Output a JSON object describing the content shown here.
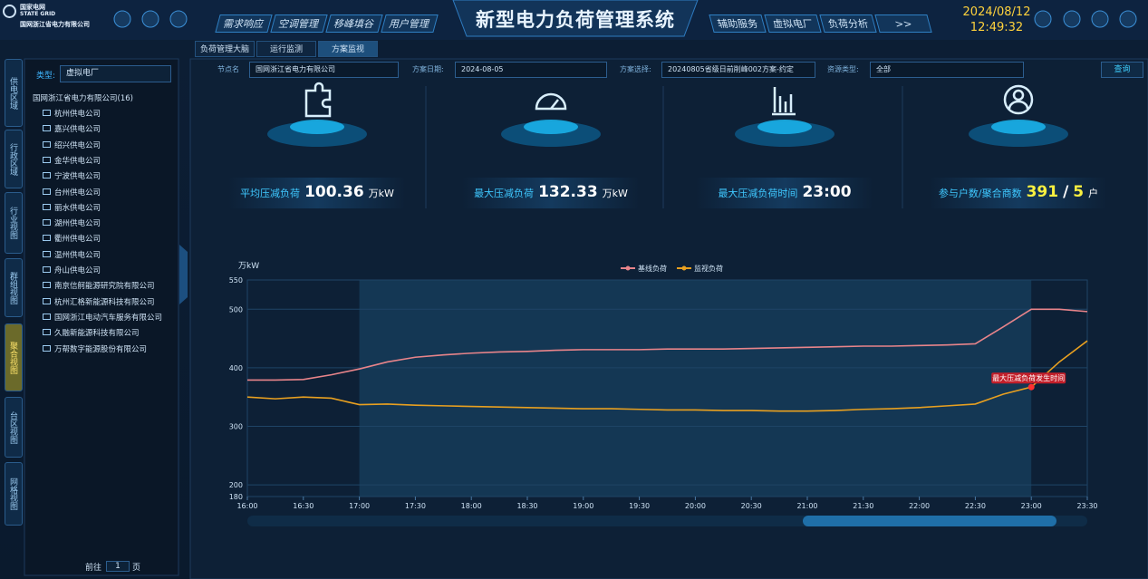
{
  "header": {
    "logo": [
      "国家电网",
      "STATE GRID",
      "国网浙江省电力有限公司"
    ],
    "title": "新型电力负荷管理系统",
    "nav_left": [
      "需求响应",
      "空调管理",
      "移峰填谷",
      "用户管理"
    ],
    "nav_right": [
      "辅助服务",
      "虚拟电厂",
      "负荷分析",
      ">>"
    ],
    "date": "2024/08/12",
    "time": "12:49:32"
  },
  "side_tabs": {
    "items": [
      "供电区域",
      "行政区域",
      "行业视图",
      "群组视图",
      "聚合视图",
      "台区视图",
      "网格视图"
    ],
    "active": 4
  },
  "tabs": {
    "items": [
      "负荷管理大脑",
      "运行监测",
      "方案监视"
    ],
    "active": 2
  },
  "tree": {
    "type_label": "类型:",
    "type_value": "虚拟电厂",
    "root": "国网浙江省电力有限公司(16)",
    "items": [
      "杭州供电公司",
      "嘉兴供电公司",
      "绍兴供电公司",
      "金华供电公司",
      "宁波供电公司",
      "台州供电公司",
      "丽水供电公司",
      "湖州供电公司",
      "衢州供电公司",
      "温州供电公司",
      "舟山供电公司",
      "南京信舸能源研究院有限公司",
      "杭州汇格新能源科技有限公司",
      "国网浙江电动汽车服务有限公司",
      "久融新能源科技有限公司",
      "万帮数字能源股份有限公司"
    ],
    "pager": {
      "goto": "前往",
      "page": "1",
      "unit": "页"
    }
  },
  "filters": {
    "node_label": "节点名",
    "node_value": "国网浙江省电力有限公司",
    "date_label": "方案日期:",
    "date_value": "2024-08-05",
    "plan_label": "方案选择:",
    "plan_value": "20240805省级日前削峰002方案-约定",
    "resource_label": "资源类型:",
    "resource_value": "全部",
    "query": "查询"
  },
  "kpis": [
    {
      "label": "平均压减负荷",
      "value": "100.36",
      "unit": "万kW"
    },
    {
      "label": "最大压减负荷",
      "value": "132.33",
      "unit": "万kW"
    },
    {
      "label": "最大压减负荷时间",
      "value": "23:00"
    },
    {
      "label": "参与户数/聚合商数",
      "value": "391",
      "separator": "/",
      "value2": "5",
      "unit": "户"
    }
  ],
  "chart_data": {
    "type": "line",
    "y_label": "万kW",
    "categories": [
      "16:00",
      null,
      "16:30",
      null,
      "17:00",
      null,
      "17:30",
      null,
      "18:00",
      null,
      "18:30",
      null,
      "19:00",
      null,
      "19:30",
      null,
      "20:00",
      null,
      "20:30",
      null,
      "21:00",
      null,
      "21:30",
      null,
      "22:00",
      null,
      "22:30",
      null,
      "23:00",
      null,
      "23:30"
    ],
    "series": [
      {
        "name": "基线负荷",
        "color": "#e8848a",
        "values": [
          379,
          379,
          380,
          388,
          398,
          410,
          418,
          422,
          425,
          427,
          428,
          430,
          431,
          431,
          431,
          432,
          432,
          432,
          433,
          434,
          435,
          436,
          437,
          437,
          438,
          439,
          441,
          470,
          500,
          500,
          496
        ]
      },
      {
        "name": "监视负荷",
        "color": "#e8a020",
        "values": [
          350,
          347,
          350,
          348,
          337,
          338,
          336,
          335,
          334,
          333,
          332,
          331,
          330,
          330,
          329,
          328,
          328,
          327,
          327,
          326,
          326,
          327,
          329,
          330,
          332,
          335,
          338,
          355,
          367,
          410,
          446
        ]
      }
    ],
    "ylim": [
      180,
      550
    ],
    "yticks": [
      180,
      200,
      300,
      400,
      500,
      550
    ],
    "grid": true,
    "highlight_period": [
      "17:00",
      "23:00"
    ],
    "annotation": {
      "text": "最大压减负荷发生时间",
      "at": "23:00",
      "series": 1
    }
  }
}
